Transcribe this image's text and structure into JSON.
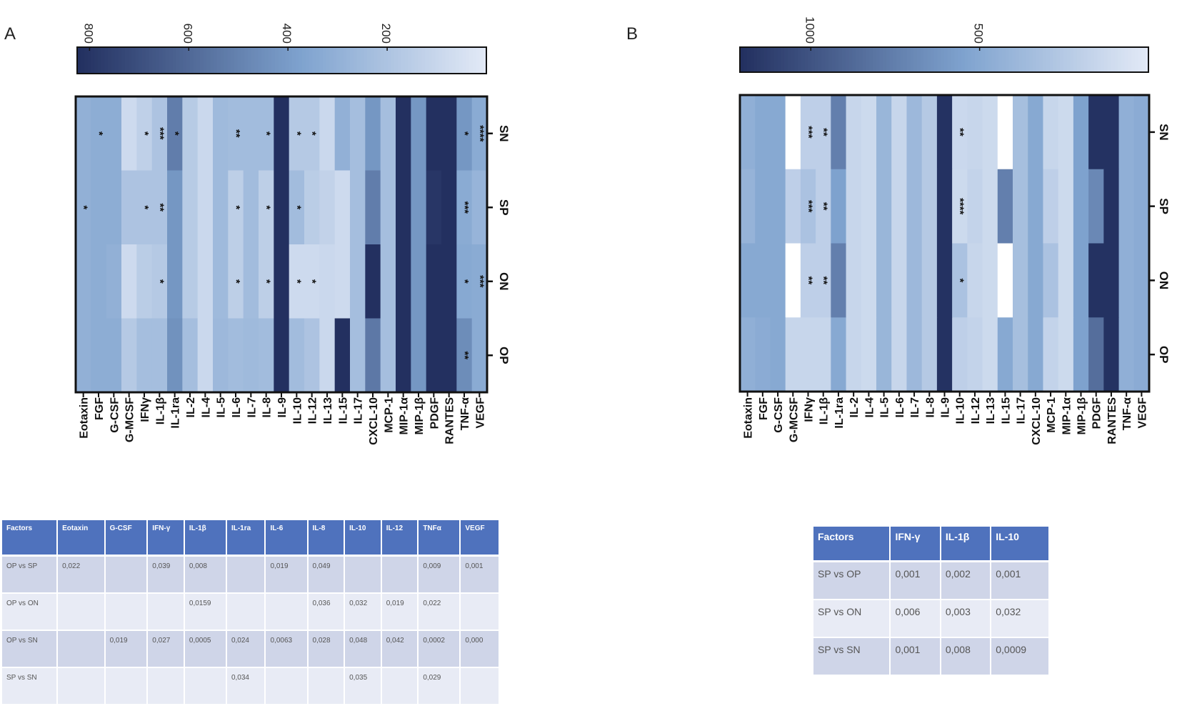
{
  "panels": {
    "a_label": "A",
    "b_label": "B"
  },
  "colors": {
    "low": "#e2e9f6",
    "mid": "#7fa3cf",
    "high": "#233060",
    "missing": "#ffffff"
  },
  "chart_data": [
    {
      "type": "heatmap",
      "panel": "A",
      "columns": [
        "Eotaxin",
        "FGF",
        "G-CSF",
        "G-MCSF",
        "IFNγ",
        "IL-1β",
        "IL-1ra",
        "IL-2",
        "IL-4",
        "IL-5",
        "IL-6",
        "IL-7",
        "IL-8",
        "IL-9",
        "IL-10",
        "IL-12",
        "IL-13",
        "IL-15",
        "IL-17",
        "CXCL-10",
        "MCP-1",
        "MIP-1α",
        "MIP-1β",
        "PDGF",
        "RANTES",
        "TNF-α",
        "VEGF"
      ],
      "rows": [
        "SN",
        "SP",
        "ON",
        "OP"
      ],
      "values": [
        [
          300,
          320,
          320,
          80,
          130,
          200,
          520,
          160,
          90,
          250,
          240,
          240,
          240,
          850,
          170,
          170,
          90,
          300,
          230,
          420,
          230,
          850,
          420,
          850,
          850,
          420,
          330
        ],
        [
          300,
          320,
          320,
          200,
          200,
          200,
          420,
          160,
          90,
          250,
          140,
          240,
          140,
          850,
          240,
          150,
          120,
          80,
          230,
          520,
          230,
          850,
          420,
          800,
          850,
          330,
          280
        ],
        [
          300,
          320,
          300,
          80,
          150,
          170,
          420,
          160,
          90,
          250,
          140,
          240,
          140,
          850,
          80,
          80,
          90,
          80,
          230,
          850,
          230,
          850,
          420,
          850,
          850,
          340,
          330
        ],
        [
          300,
          320,
          320,
          170,
          230,
          230,
          440,
          230,
          90,
          260,
          240,
          250,
          240,
          850,
          240,
          200,
          90,
          850,
          230,
          540,
          230,
          850,
          420,
          850,
          850,
          460,
          330
        ]
      ],
      "significance": [
        {
          "column": "Eotaxin",
          "row": "SP",
          "mark": "*"
        },
        {
          "column": "FGF",
          "row": "SN",
          "mark": "*"
        },
        {
          "column": "IFNγ",
          "row": "SN",
          "mark": "*"
        },
        {
          "column": "IFNγ",
          "row": "SP",
          "mark": "*"
        },
        {
          "column": "IL-1β",
          "row": "SN",
          "mark": "***"
        },
        {
          "column": "IL-1β",
          "row": "SP",
          "mark": "**"
        },
        {
          "column": "IL-1β",
          "row": "ON",
          "mark": "*"
        },
        {
          "column": "IL-1ra",
          "row": "SN",
          "mark": "*"
        },
        {
          "column": "IL-6",
          "row": "SN",
          "mark": "**"
        },
        {
          "column": "IL-6",
          "row": "SP",
          "mark": "*"
        },
        {
          "column": "IL-6",
          "row": "ON",
          "mark": "*"
        },
        {
          "column": "IL-8",
          "row": "SN",
          "mark": "*"
        },
        {
          "column": "IL-8",
          "row": "SP",
          "mark": "*"
        },
        {
          "column": "IL-8",
          "row": "ON",
          "mark": "*"
        },
        {
          "column": "IL-10",
          "row": "SN",
          "mark": "*"
        },
        {
          "column": "IL-10",
          "row": "SP",
          "mark": "*"
        },
        {
          "column": "IL-10",
          "row": "ON",
          "mark": "*"
        },
        {
          "column": "IL-12",
          "row": "SN",
          "mark": "*"
        },
        {
          "column": "IL-12",
          "row": "ON",
          "mark": "*"
        },
        {
          "column": "TNF-α",
          "row": "SN",
          "mark": "*"
        },
        {
          "column": "TNF-α",
          "row": "SP",
          "mark": "***"
        },
        {
          "column": "TNF-α",
          "row": "ON",
          "mark": "*"
        },
        {
          "column": "TNF-α",
          "row": "OP",
          "mark": "**"
        },
        {
          "column": "VEGF",
          "row": "SN",
          "mark": "****"
        },
        {
          "column": "VEGF",
          "row": "ON",
          "mark": "***"
        }
      ],
      "colorbar": {
        "range": [
          0,
          825
        ],
        "ticks": [
          800,
          600,
          400,
          200
        ],
        "direction": "high-left"
      }
    },
    {
      "type": "heatmap",
      "panel": "B",
      "columns": [
        "Eotaxin",
        "FGF",
        "G-CSF",
        "G-MCSF",
        "IFNγ",
        "IL-1β",
        "IL-1ra",
        "IL-2",
        "IL-4",
        "IL-5",
        "IL-6",
        "IL-7",
        "IL-8",
        "IL-9",
        "IL-10",
        "IL-12",
        "IL-13",
        "IL-15",
        "IL-17",
        "CXCL-10",
        "MCP-1",
        "MIP-1α",
        "MIP-1β",
        "PDGF",
        "RANTES",
        "TNF-α",
        "VEGF"
      ],
      "rows": [
        "SN",
        "SP",
        "ON",
        "OP"
      ],
      "values": [
        [
          450,
          500,
          500,
          null,
          200,
          200,
          750,
          150,
          120,
          400,
          150,
          380,
          250,
          1200,
          130,
          150,
          120,
          null,
          330,
          500,
          150,
          120,
          550,
          1200,
          1200,
          450,
          480
        ],
        [
          420,
          500,
          500,
          200,
          300,
          200,
          550,
          150,
          120,
          400,
          150,
          380,
          250,
          1200,
          120,
          170,
          120,
          750,
          330,
          500,
          200,
          120,
          550,
          700,
          1200,
          450,
          480
        ],
        [
          500,
          500,
          500,
          null,
          200,
          200,
          750,
          150,
          120,
          400,
          150,
          380,
          250,
          1200,
          300,
          150,
          120,
          null,
          330,
          500,
          300,
          120,
          550,
          1200,
          1200,
          450,
          480
        ],
        [
          450,
          480,
          500,
          150,
          150,
          150,
          500,
          150,
          120,
          400,
          150,
          380,
          250,
          1200,
          200,
          170,
          120,
          500,
          330,
          500,
          170,
          120,
          550,
          850,
          1200,
          450,
          480
        ]
      ],
      "significance": [
        {
          "column": "IFNγ",
          "row": "SN",
          "mark": "***"
        },
        {
          "column": "IFNγ",
          "row": "SP",
          "mark": "***"
        },
        {
          "column": "IFNγ",
          "row": "ON",
          "mark": "**"
        },
        {
          "column": "IL-1β",
          "row": "SN",
          "mark": "**"
        },
        {
          "column": "IL-1β",
          "row": "SP",
          "mark": "**"
        },
        {
          "column": "IL-1β",
          "row": "ON",
          "mark": "**"
        },
        {
          "column": "IL-10",
          "row": "SN",
          "mark": "**"
        },
        {
          "column": "IL-10",
          "row": "SP",
          "mark": "****"
        },
        {
          "column": "IL-10",
          "row": "ON",
          "mark": "*"
        }
      ],
      "colorbar": {
        "range": [
          0,
          1210
        ],
        "ticks": [
          1000,
          500
        ],
        "direction": "high-left"
      }
    }
  ],
  "tables": {
    "a": {
      "headers": [
        "Factors",
        "Eotaxin",
        "G-CSF",
        "IFN-γ",
        "IL-1β",
        "IL-1ra",
        "IL-6",
        "IL-8",
        "IL-10",
        "IL-12",
        "TNFα",
        "VEGF"
      ],
      "rows": [
        [
          "OP vs SP",
          "0,022",
          "",
          "0,039",
          "0,008",
          "",
          "0,019",
          "0,049",
          "",
          "",
          "0,009",
          "0,001"
        ],
        [
          "OP vs ON",
          "",
          "",
          "",
          "0,0159",
          "",
          "",
          "0,036",
          "0,032",
          "0,019",
          "0,022",
          ""
        ],
        [
          "OP vs SN",
          "",
          "0,019",
          "0,027",
          "0,0005",
          "0,024",
          "0,0063",
          "0,028",
          "0,048",
          "0,042",
          "0,0002",
          "0,000"
        ],
        [
          "SP vs SN",
          "",
          "",
          "",
          "",
          "0,034",
          "",
          "",
          "0,035",
          "",
          "0,029",
          ""
        ]
      ]
    },
    "b": {
      "headers": [
        "Factors",
        "IFN-γ",
        "IL-1β",
        "IL-10"
      ],
      "rows": [
        [
          "SP vs OP",
          "0,001",
          "0,002",
          "0,001"
        ],
        [
          "SP vs ON",
          "0,006",
          "0,003",
          "0,032"
        ],
        [
          "SP vs SN",
          "0,001",
          "0,008",
          "0,0009"
        ]
      ]
    }
  }
}
